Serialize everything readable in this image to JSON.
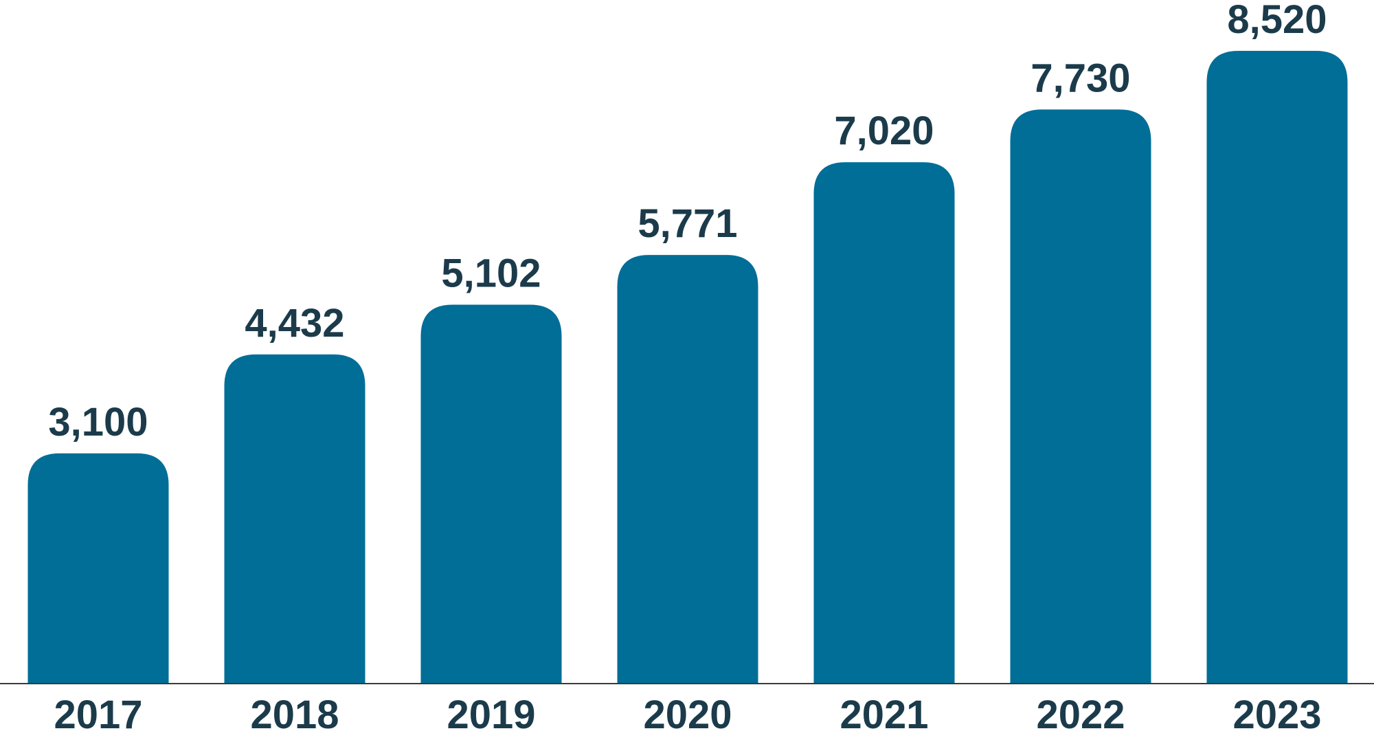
{
  "chart_data": {
    "type": "bar",
    "categories": [
      "2017",
      "2018",
      "2019",
      "2020",
      "2021",
      "2022",
      "2023"
    ],
    "values": [
      3100,
      4432,
      5102,
      5771,
      7020,
      7730,
      8520
    ],
    "value_labels": [
      "3,100",
      "4,432",
      "5,102",
      "5,771",
      "7,020",
      "7,730",
      "8,520"
    ],
    "title": "",
    "xlabel": "",
    "ylabel": "",
    "ylim": [
      0,
      8520
    ],
    "grid": false,
    "legend": "none",
    "colors": {
      "bar": "#006E97",
      "text": "#1B3B4B",
      "axis": "#3a3a3a"
    }
  }
}
